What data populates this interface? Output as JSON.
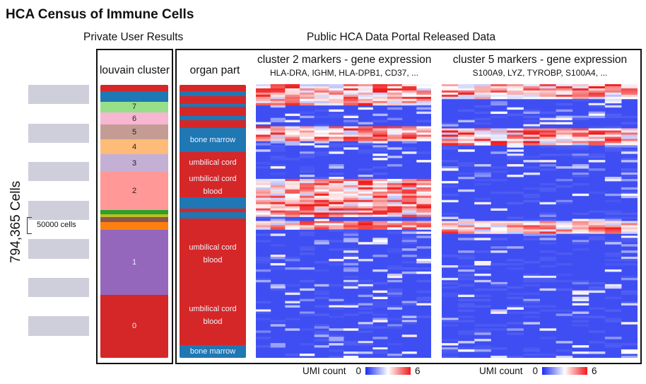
{
  "title": "HCA Census of Immune Cells",
  "private_header": "Private User Results",
  "public_header": "Public HCA Data Portal Released Data",
  "cells_total": "794,365 Cells",
  "scale_label": "50000 cells",
  "louvain": {
    "title": "louvain cluster",
    "clusters": [
      {
        "label": "",
        "color": "#d62728",
        "weight": 6
      },
      {
        "label": "",
        "color": "#1f77b4",
        "weight": 10
      },
      {
        "label": "7",
        "color": "#98df8a",
        "weight": 10
      },
      {
        "label": "6",
        "color": "#f7b6d2",
        "weight": 12
      },
      {
        "label": "5",
        "color": "#c49c94",
        "weight": 14
      },
      {
        "label": "4",
        "color": "#ffbb78",
        "weight": 14
      },
      {
        "label": "3",
        "color": "#c5b0d5",
        "weight": 17
      },
      {
        "label": "2",
        "color": "#ff9896",
        "weight": 36
      },
      {
        "label": "",
        "color": "#2ca02c",
        "weight": 4
      },
      {
        "label": "",
        "color": "#bcbd22",
        "weight": 3
      },
      {
        "label": "",
        "color": "#8c564b",
        "weight": 5
      },
      {
        "label": "",
        "color": "#ff7f0e",
        "weight": 7
      },
      {
        "label": "1",
        "color": "#9467bd",
        "weight": 62
      },
      {
        "label": "0",
        "color": "#d62728",
        "weight": 60
      }
    ]
  },
  "organ": {
    "title": "organ part",
    "segments": [
      {
        "label": "",
        "color": "#d62728",
        "weight": 8
      },
      {
        "label": "",
        "color": "#1f77b4",
        "weight": 6
      },
      {
        "label": "",
        "color": "#d62728",
        "weight": 10
      },
      {
        "label": "",
        "color": "#1f77b4",
        "weight": 4
      },
      {
        "label": "",
        "color": "#d62728",
        "weight": 12
      },
      {
        "label": "",
        "color": "#1f77b4",
        "weight": 5
      },
      {
        "label": "",
        "color": "#d62728",
        "weight": 10
      },
      {
        "label": "bone marrow",
        "color": "#1f77b4",
        "weight": 30
      },
      {
        "label": "umbilical cord",
        "color": "#d62728",
        "weight": 28
      },
      {
        "label": "umbilical cord blood",
        "color": "#d62728",
        "weight": 30
      },
      {
        "label": "",
        "color": "#1f77b4",
        "weight": 14
      },
      {
        "label": "",
        "color": "#d62728",
        "weight": 5
      },
      {
        "label": "",
        "color": "#1f77b4",
        "weight": 8
      },
      {
        "label": "",
        "color": "#d62728",
        "weight": 5
      },
      {
        "label": "umbilical cord blood",
        "color": "#d62728",
        "weight": 80
      },
      {
        "label": "umbilical cord blood",
        "color": "#d62728",
        "weight": 76
      },
      {
        "label": "bone marrow",
        "color": "#1f77b4",
        "weight": 16
      }
    ]
  },
  "heatmaps": [
    {
      "title": "cluster 2 markers - gene expression",
      "genes": "HLA-DRA, IGHM, HLA-DPB1, CD37, ...",
      "columns": 12,
      "hot_rows": [
        [
          0.0,
          0.07
        ],
        [
          0.15,
          0.2
        ],
        [
          0.34,
          0.48
        ],
        [
          0.5,
          0.53
        ]
      ]
    },
    {
      "title": "cluster 5 markers - gene expression",
      "genes": "S100A9, LYZ, TYROBP, S100A4, ...",
      "columns": 12,
      "hot_rows": [
        [
          0.0,
          0.05
        ],
        [
          0.16,
          0.22
        ],
        [
          0.5,
          0.54
        ]
      ]
    }
  ],
  "legend": {
    "label": "UMI count",
    "min": "0",
    "max": "6",
    "colors": [
      "#1a2cf0",
      "#ffffff",
      "#f01a1a"
    ]
  }
}
